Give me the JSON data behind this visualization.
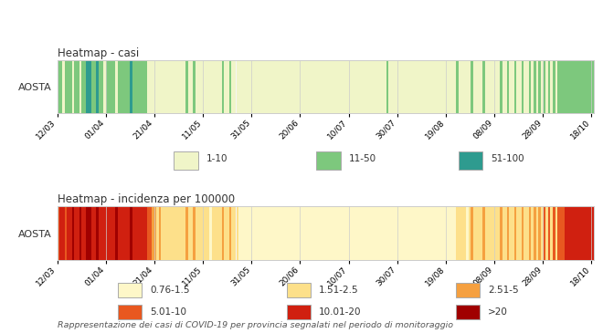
{
  "title1": "Heatmap - casi",
  "title2": "Heatmap - incidenza per 100000",
  "ylabel": "AOSTA",
  "footnote": "Rappresentazione dei casi di COVID-19 per provincia segnalati nel periodo di monitoraggio",
  "xtick_labels": [
    "12/03",
    "01/04",
    "21/04",
    "11/05",
    "31/05",
    "20/06",
    "10/07",
    "30/07",
    "19/08",
    "08/09",
    "28/09",
    "18/10"
  ],
  "n_days": 222,
  "background_color": "#ffffff",
  "grid_color": "#cccccc",
  "legend1_items": [
    {
      "label": "1-10",
      "color": "#f0f5c8"
    },
    {
      "label": "11-50",
      "color": "#7dc87d"
    },
    {
      "label": "51-100",
      "color": "#2e9b8f"
    }
  ],
  "legend2_items": [
    {
      "label": "0.76-1.5",
      "color": "#fef7c8"
    },
    {
      "label": "1.51-2.5",
      "color": "#fde08a"
    },
    {
      "label": "2.51-5",
      "color": "#f5a040"
    },
    {
      "label": "5.01-10",
      "color": "#e85820"
    },
    {
      "label": "10.01-20",
      "color": "#d02010"
    },
    {
      "label": ">20",
      "color": "#a00000"
    }
  ],
  "casi_colors": [
    "#7dc87d",
    "#7dc87d",
    "#f0f5c8",
    "#7dc87d",
    "#7dc87d",
    "#7dc87d",
    "#f0f5c8",
    "#7dc87d",
    "#7dc87d",
    "#f0f5c8",
    "#7dc87d",
    "#7dc87d",
    "#2e9b8f",
    "#2e9b8f",
    "#7dc87d",
    "#7dc87d",
    "#2e9b8f",
    "#7dc87d",
    "#7dc87d",
    "#f0f5c8",
    "#7dc87d",
    "#7dc87d",
    "#7dc87d",
    "#7dc87d",
    "#f0f5c8",
    "#7dc87d",
    "#7dc87d",
    "#7dc87d",
    "#7dc87d",
    "#7dc87d",
    "#2e9b8f",
    "#7dc87d",
    "#7dc87d",
    "#7dc87d",
    "#7dc87d",
    "#7dc87d",
    "#7dc87d",
    "#f0f5c8",
    "#f0f5c8",
    "#f0f5c8",
    "#f0f5c8",
    "#f0f5c8",
    "#f0f5c8",
    "#f0f5c8",
    "#f0f5c8",
    "#f0f5c8",
    "#f0f5c8",
    "#f0f5c8",
    "#f0f5c8",
    "#f0f5c8",
    "#f0f5c8",
    "#f0f5c8",
    "#f0f5c8",
    "#7dc87d",
    "#f0f5c8",
    "#f0f5c8",
    "#7dc87d",
    "#f0f5c8",
    "#f0f5c8",
    "#f0f5c8",
    "#f0f5c8",
    "#f0f5c8",
    "#f0f5c8",
    "#f0f5c8",
    "#f0f5c8",
    "#f0f5c8",
    "#f0f5c8",
    "#f0f5c8",
    "#7dc87d",
    "#f0f5c8",
    "#f0f5c8",
    "#7dc87d",
    "#f0f5c8",
    "#f0f5c8",
    "#f0f5c8",
    "#f0f5c8",
    "#f0f5c8",
    "#f0f5c8",
    "#f0f5c8",
    "#f0f5c8",
    "#f0f5c8",
    "#f0f5c8",
    "#f0f5c8",
    "#f0f5c8",
    "#f0f5c8",
    "#f0f5c8",
    "#f0f5c8",
    "#f0f5c8",
    "#f0f5c8",
    "#f0f5c8",
    "#f0f5c8",
    "#f0f5c8",
    "#f0f5c8",
    "#f0f5c8",
    "#f0f5c8",
    "#f0f5c8",
    "#f0f5c8",
    "#f0f5c8",
    "#f0f5c8",
    "#f0f5c8",
    "#f0f5c8",
    "#f0f5c8",
    "#f0f5c8",
    "#f0f5c8",
    "#f0f5c8",
    "#f0f5c8",
    "#f0f5c8",
    "#f0f5c8",
    "#f0f5c8",
    "#f0f5c8",
    "#f0f5c8",
    "#f0f5c8",
    "#f0f5c8",
    "#f0f5c8",
    "#f0f5c8",
    "#f0f5c8",
    "#f0f5c8",
    "#f0f5c8",
    "#f0f5c8",
    "#f0f5c8",
    "#f0f5c8",
    "#f0f5c8",
    "#f0f5c8",
    "#f0f5c8",
    "#f0f5c8",
    "#f0f5c8",
    "#f0f5c8",
    "#f0f5c8",
    "#f0f5c8",
    "#f0f5c8",
    "#f0f5c8",
    "#f0f5c8",
    "#f0f5c8",
    "#f0f5c8",
    "#f0f5c8",
    "#f0f5c8",
    "#7dc87d",
    "#f0f5c8",
    "#f0f5c8",
    "#f0f5c8",
    "#f0f5c8",
    "#f0f5c8",
    "#f0f5c8",
    "#f0f5c8",
    "#f0f5c8",
    "#f0f5c8",
    "#f0f5c8",
    "#f0f5c8",
    "#f0f5c8",
    "#f0f5c8",
    "#f0f5c8",
    "#f0f5c8",
    "#f0f5c8",
    "#f0f5c8",
    "#f0f5c8",
    "#f0f5c8",
    "#f0f5c8",
    "#f0f5c8",
    "#f0f5c8",
    "#f0f5c8",
    "#f0f5c8",
    "#f0f5c8",
    "#f0f5c8",
    "#f0f5c8",
    "#f0f5c8",
    "#7dc87d",
    "#f0f5c8",
    "#f0f5c8",
    "#f0f5c8",
    "#f0f5c8",
    "#f0f5c8",
    "#7dc87d",
    "#f0f5c8",
    "#f0f5c8",
    "#f0f5c8",
    "#f0f5c8",
    "#7dc87d",
    "#f0f5c8",
    "#f0f5c8",
    "#f0f5c8",
    "#f0f5c8",
    "#f0f5c8",
    "#f0f5c8",
    "#7dc87d",
    "#f0f5c8",
    "#f0f5c8",
    "#7dc87d",
    "#f0f5c8",
    "#f0f5c8",
    "#7dc87d",
    "#f0f5c8",
    "#f0f5c8",
    "#7dc87d",
    "#f0f5c8",
    "#f0f5c8",
    "#7dc87d",
    "#f0f5c8",
    "#7dc87d",
    "#f0f5c8",
    "#7dc87d",
    "#f0f5c8",
    "#7dc87d",
    "#f0f5c8",
    "#7dc87d",
    "#f0f5c8",
    "#7dc87d",
    "#f0f5c8",
    "#7dc87d",
    "#7dc87d",
    "#7dc87d",
    "#7dc87d",
    "#7dc87d",
    "#7dc87d",
    "#7dc87d",
    "#7dc87d",
    "#7dc87d",
    "#7dc87d",
    "#7dc87d",
    "#7dc87d",
    "#7dc87d",
    "#7dc87d",
    "#7dc87d"
  ],
  "incidenza_colors": [
    "#e85820",
    "#d02010",
    "#d02010",
    "#e85820",
    "#d02010",
    "#d02010",
    "#a00000",
    "#d02010",
    "#d02010",
    "#a00000",
    "#d02010",
    "#d02010",
    "#a00000",
    "#a00000",
    "#d02010",
    "#d02010",
    "#a00000",
    "#d02010",
    "#d02010",
    "#d02010",
    "#d02010",
    "#d02010",
    "#d02010",
    "#d02010",
    "#a00000",
    "#d02010",
    "#d02010",
    "#d02010",
    "#d02010",
    "#d02010",
    "#a00000",
    "#d02010",
    "#d02010",
    "#d02010",
    "#d02010",
    "#d02010",
    "#d02010",
    "#e85820",
    "#e85820",
    "#f5a040",
    "#f5a040",
    "#fde08a",
    "#f5a040",
    "#fde08a",
    "#fde08a",
    "#fde08a",
    "#fde08a",
    "#fde08a",
    "#fde08a",
    "#fde08a",
    "#fde08a",
    "#fde08a",
    "#fde08a",
    "#f5a040",
    "#fde08a",
    "#fde08a",
    "#f5a040",
    "#fde08a",
    "#fde08a",
    "#fde08a",
    "#fde08a",
    "#fde08a",
    "#fde08a",
    "#fef7c8",
    "#fde08a",
    "#fde08a",
    "#fde08a",
    "#fde08a",
    "#f5a040",
    "#fde08a",
    "#fde08a",
    "#f5a040",
    "#fde08a",
    "#fde08a",
    "#fde08a",
    "#fef7c8",
    "#fef7c8",
    "#fef7c8",
    "#fef7c8",
    "#fef7c8",
    "#fef7c8",
    "#fef7c8",
    "#fef7c8",
    "#fef7c8",
    "#fef7c8",
    "#fef7c8",
    "#fef7c8",
    "#fef7c8",
    "#fef7c8",
    "#fef7c8",
    "#fef7c8",
    "#fef7c8",
    "#fef7c8",
    "#fef7c8",
    "#fef7c8",
    "#fef7c8",
    "#fef7c8",
    "#fef7c8",
    "#fef7c8",
    "#fef7c8",
    "#fef7c8",
    "#fef7c8",
    "#fef7c8",
    "#fef7c8",
    "#fef7c8",
    "#fef7c8",
    "#fef7c8",
    "#fef7c8",
    "#fef7c8",
    "#fef7c8",
    "#fef7c8",
    "#fef7c8",
    "#fef7c8",
    "#fef7c8",
    "#fef7c8",
    "#fef7c8",
    "#fef7c8",
    "#fef7c8",
    "#fef7c8",
    "#fef7c8",
    "#fef7c8",
    "#fef7c8",
    "#fef7c8",
    "#fef7c8",
    "#fef7c8",
    "#fef7c8",
    "#fef7c8",
    "#fef7c8",
    "#fef7c8",
    "#fef7c8",
    "#fef7c8",
    "#fef7c8",
    "#fef7c8",
    "#fef7c8",
    "#fef7c8",
    "#fef7c8",
    "#fef7c8",
    "#fef7c8",
    "#fef7c8",
    "#fef7c8",
    "#fef7c8",
    "#fef7c8",
    "#fef7c8",
    "#fef7c8",
    "#fef7c8",
    "#fef7c8",
    "#fef7c8",
    "#fef7c8",
    "#fef7c8",
    "#fef7c8",
    "#fef7c8",
    "#fef7c8",
    "#fef7c8",
    "#fef7c8",
    "#fef7c8",
    "#fef7c8",
    "#fef7c8",
    "#fef7c8",
    "#fef7c8",
    "#fef7c8",
    "#fef7c8",
    "#fef7c8",
    "#fef7c8",
    "#fef7c8",
    "#fef7c8",
    "#fde08a",
    "#fde08a",
    "#fde08a",
    "#fde08a",
    "#fef7c8",
    "#fde08a",
    "#f5a040",
    "#fde08a",
    "#fde08a",
    "#fde08a",
    "#fde08a",
    "#f5a040",
    "#fde08a",
    "#fde08a",
    "#fde08a",
    "#fde08a",
    "#fde08a",
    "#fde08a",
    "#f5a040",
    "#fde08a",
    "#fde08a",
    "#f5a040",
    "#fde08a",
    "#fde08a",
    "#f5a040",
    "#fde08a",
    "#fde08a",
    "#f5a040",
    "#fde08a",
    "#fde08a",
    "#f5a040",
    "#fde08a",
    "#f5a040",
    "#fde08a",
    "#f5a040",
    "#fde08a",
    "#e85820",
    "#fde08a",
    "#e85820",
    "#fde08a",
    "#e85820",
    "#fde08a",
    "#e85820",
    "#e85820",
    "#e85820",
    "#d02010",
    "#d02010",
    "#d02010",
    "#d02010",
    "#d02010",
    "#d02010",
    "#d02010",
    "#d02010",
    "#d02010",
    "#d02010",
    "#d02010",
    "#d02010"
  ]
}
